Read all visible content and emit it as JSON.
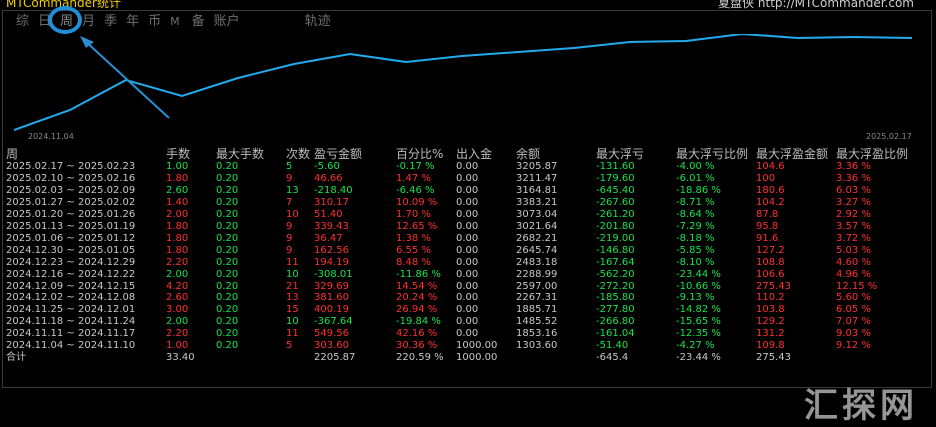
{
  "header": {
    "title": "MTCommander统计",
    "site": "夏盘侠 http://MTCommander.com"
  },
  "tabs": [
    "综",
    "日",
    "周",
    "月",
    "季",
    "年",
    "币",
    "M",
    "备",
    "账户",
    "轨迹"
  ],
  "chart": {
    "start_label": "2024.11.04",
    "end_label": "2025.02.17",
    "line_color": "#22aaee"
  },
  "columns": [
    "周",
    "手数",
    "最大手数",
    "次数",
    "盈亏金额",
    "百分比%",
    "出入金",
    "余额",
    "最大浮亏",
    "最大浮亏比例",
    "最大浮盈金额",
    "最大浮盈比例"
  ],
  "rows": [
    {
      "week": "2025.02.17 ~ 2025.02.23",
      "lots": "1.00",
      "max_lots": "0.20",
      "count": "5",
      "pnl": "-5.60",
      "pct": "-0.17 %",
      "flow": "0.00",
      "balance": "3205.87",
      "max_float_loss": "-131.60",
      "max_float_loss_pct": "-4.00 %",
      "max_float_profit": "104.6",
      "max_float_profit_pct": "3.36 %",
      "color": "g"
    },
    {
      "week": "2025.02.10 ~ 2025.02.16",
      "lots": "1.80",
      "max_lots": "0.20",
      "count": "9",
      "pnl": "46.66",
      "pct": "1.47 %",
      "flow": "0.00",
      "balance": "3211.47",
      "max_float_loss": "-179.60",
      "max_float_loss_pct": "-6.01 %",
      "max_float_profit": "100",
      "max_float_profit_pct": "3.36 %",
      "color": "r"
    },
    {
      "week": "2025.02.03 ~ 2025.02.09",
      "lots": "2.60",
      "max_lots": "0.20",
      "count": "13",
      "pnl": "-218.40",
      "pct": "-6.46 %",
      "flow": "0.00",
      "balance": "3164.81",
      "max_float_loss": "-645.40",
      "max_float_loss_pct": "-18.86 %",
      "max_float_profit": "180.6",
      "max_float_profit_pct": "6.03 %",
      "color": "g"
    },
    {
      "week": "2025.01.27 ~ 2025.02.02",
      "lots": "1.40",
      "max_lots": "0.20",
      "count": "7",
      "pnl": "310.17",
      "pct": "10.09 %",
      "flow": "0.00",
      "balance": "3383.21",
      "max_float_loss": "-267.60",
      "max_float_loss_pct": "-8.71 %",
      "max_float_profit": "104.2",
      "max_float_profit_pct": "3.27 %",
      "color": "r"
    },
    {
      "week": "2025.01.20 ~ 2025.01.26",
      "lots": "2.00",
      "max_lots": "0.20",
      "count": "10",
      "pnl": "51.40",
      "pct": "1.70 %",
      "flow": "0.00",
      "balance": "3073.04",
      "max_float_loss": "-261.20",
      "max_float_loss_pct": "-8.64 %",
      "max_float_profit": "87.8",
      "max_float_profit_pct": "2.92 %",
      "color": "r"
    },
    {
      "week": "2025.01.13 ~ 2025.01.19",
      "lots": "1.80",
      "max_lots": "0.20",
      "count": "9",
      "pnl": "339.43",
      "pct": "12.65 %",
      "flow": "0.00",
      "balance": "3021.64",
      "max_float_loss": "-201.80",
      "max_float_loss_pct": "-7.29 %",
      "max_float_profit": "95.8",
      "max_float_profit_pct": "3.57 %",
      "color": "r"
    },
    {
      "week": "2025.01.06 ~ 2025.01.12",
      "lots": "1.80",
      "max_lots": "0.20",
      "count": "9",
      "pnl": "36.47",
      "pct": "1.38 %",
      "flow": "0.00",
      "balance": "2682.21",
      "max_float_loss": "-219.00",
      "max_float_loss_pct": "-8.18 %",
      "max_float_profit": "91.6",
      "max_float_profit_pct": "3.72 %",
      "color": "r"
    },
    {
      "week": "2024.12.30 ~ 2025.01.05",
      "lots": "1.80",
      "max_lots": "0.20",
      "count": "9",
      "pnl": "162.56",
      "pct": "6.55 %",
      "flow": "0.00",
      "balance": "2645.74",
      "max_float_loss": "-146.80",
      "max_float_loss_pct": "-5.85 %",
      "max_float_profit": "127.2",
      "max_float_profit_pct": "5.03 %",
      "color": "r"
    },
    {
      "week": "2024.12.23 ~ 2024.12.29",
      "lots": "2.20",
      "max_lots": "0.20",
      "count": "11",
      "pnl": "194.19",
      "pct": "8.48 %",
      "flow": "0.00",
      "balance": "2483.18",
      "max_float_loss": "-167.64",
      "max_float_loss_pct": "-8.10 %",
      "max_float_profit": "108.8",
      "max_float_profit_pct": "4.60 %",
      "color": "r"
    },
    {
      "week": "2024.12.16 ~ 2024.12.22",
      "lots": "2.00",
      "max_lots": "0.20",
      "count": "10",
      "pnl": "-308.01",
      "pct": "-11.86 %",
      "flow": "0.00",
      "balance": "2288.99",
      "max_float_loss": "-562.20",
      "max_float_loss_pct": "-23.44 %",
      "max_float_profit": "106.6",
      "max_float_profit_pct": "4.96 %",
      "color": "g"
    },
    {
      "week": "2024.12.09 ~ 2024.12.15",
      "lots": "4.20",
      "max_lots": "0.20",
      "count": "21",
      "pnl": "329.69",
      "pct": "14.54 %",
      "flow": "0.00",
      "balance": "2597.00",
      "max_float_loss": "-272.20",
      "max_float_loss_pct": "-10.66 %",
      "max_float_profit": "275.43",
      "max_float_profit_pct": "12.15 %",
      "color": "r"
    },
    {
      "week": "2024.12.02 ~ 2024.12.08",
      "lots": "2.60",
      "max_lots": "0.20",
      "count": "13",
      "pnl": "381.60",
      "pct": "20.24 %",
      "flow": "0.00",
      "balance": "2267.31",
      "max_float_loss": "-185.80",
      "max_float_loss_pct": "-9.13 %",
      "max_float_profit": "110.2",
      "max_float_profit_pct": "5.60 %",
      "color": "r"
    },
    {
      "week": "2024.11.25 ~ 2024.12.01",
      "lots": "3.00",
      "max_lots": "0.20",
      "count": "15",
      "pnl": "400.19",
      "pct": "26.94 %",
      "flow": "0.00",
      "balance": "1885.71",
      "max_float_loss": "-277.80",
      "max_float_loss_pct": "-14.82 %",
      "max_float_profit": "103.8",
      "max_float_profit_pct": "6.05 %",
      "color": "r"
    },
    {
      "week": "2024.11.18 ~ 2024.11.24",
      "lots": "2.00",
      "max_lots": "0.20",
      "count": "10",
      "pnl": "-367.64",
      "pct": "-19.84 %",
      "flow": "0.00",
      "balance": "1485.52",
      "max_float_loss": "-266.80",
      "max_float_loss_pct": "-15.65 %",
      "max_float_profit": "129.2",
      "max_float_profit_pct": "7.07 %",
      "color": "g"
    },
    {
      "week": "2024.11.11 ~ 2024.11.17",
      "lots": "2.20",
      "max_lots": "0.20",
      "count": "11",
      "pnl": "549.56",
      "pct": "42.16 %",
      "flow": "0.00",
      "balance": "1853.16",
      "max_float_loss": "-161.04",
      "max_float_loss_pct": "-12.35 %",
      "max_float_profit": "131.2",
      "max_float_profit_pct": "9.03 %",
      "color": "r"
    },
    {
      "week": "2024.11.04 ~ 2024.11.10",
      "lots": "1.00",
      "max_lots": "0.20",
      "count": "5",
      "pnl": "303.60",
      "pct": "30.36 %",
      "flow": "1000.00",
      "balance": "1303.60",
      "max_float_loss": "-51.40",
      "max_float_loss_pct": "-4.27 %",
      "max_float_profit": "109.8",
      "max_float_profit_pct": "9.12 %",
      "color": "r"
    }
  ],
  "total": {
    "label": "合计",
    "lots": "33.40",
    "pnl": "2205.87",
    "pct": "220.59 %",
    "flow": "1000.00",
    "max_float_loss": "-645.4",
    "max_float_loss_pct": "-23.44 %",
    "max_float_profit": "275.43"
  },
  "watermark": "汇探网"
}
